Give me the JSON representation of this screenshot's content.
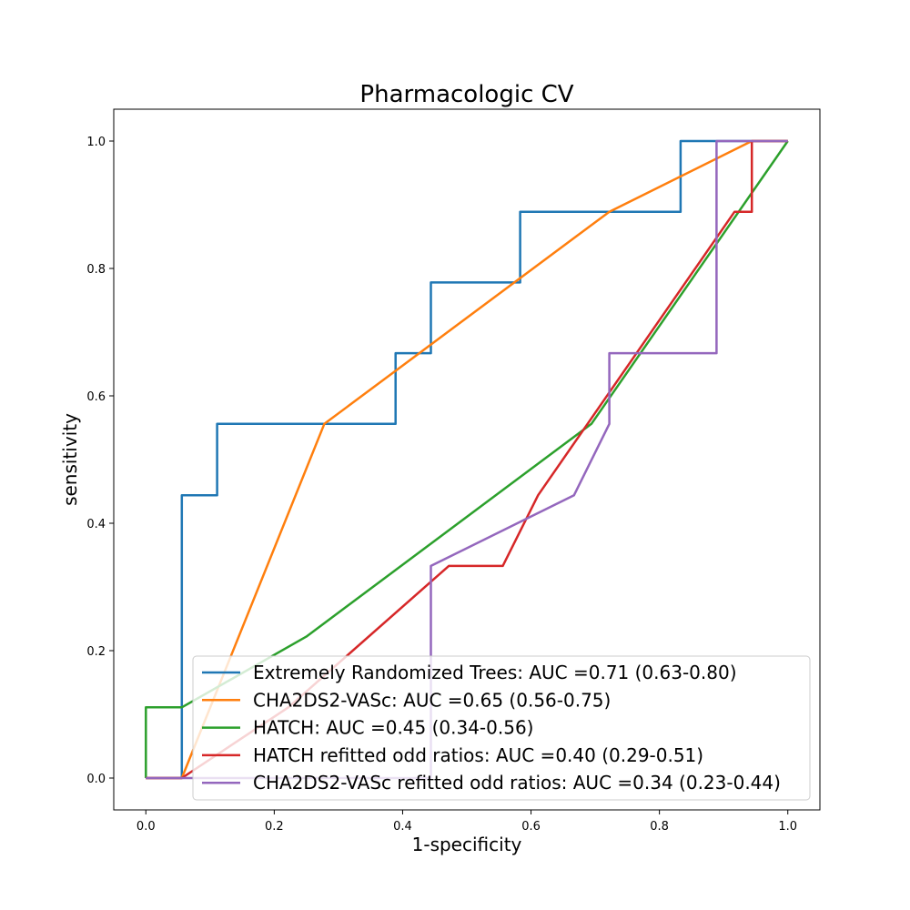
{
  "chart_data": {
    "type": "line",
    "title": "Pharmacologic CV",
    "xlabel": "1-specificity",
    "ylabel": "sensitivity",
    "xlim": [
      -0.05,
      1.05
    ],
    "ylim": [
      -0.05,
      1.05
    ],
    "xticks": [
      0.0,
      0.2,
      0.4,
      0.6,
      0.8,
      1.0
    ],
    "yticks": [
      0.0,
      0.2,
      0.4,
      0.6,
      0.8,
      1.0
    ],
    "xtick_labels": [
      "0.0",
      "0.2",
      "0.4",
      "0.6",
      "0.8",
      "1.0"
    ],
    "ytick_labels": [
      "0.0",
      "0.2",
      "0.4",
      "0.6",
      "0.8",
      "1.0"
    ],
    "grid": false,
    "legend_position": "lower-right",
    "series": [
      {
        "name": "Extremely Randomized Trees: AUC =0.71 (0.63-0.80)",
        "color": "#1f77b4",
        "x": [
          0.0,
          0.056,
          0.056,
          0.111,
          0.111,
          0.389,
          0.389,
          0.444,
          0.444,
          0.583,
          0.583,
          0.833,
          0.833,
          1.0
        ],
        "y": [
          0.0,
          0.0,
          0.444,
          0.444,
          0.556,
          0.556,
          0.667,
          0.667,
          0.778,
          0.778,
          0.889,
          0.889,
          1.0,
          1.0
        ]
      },
      {
        "name": "CHA2DS2-VASc: AUC =0.65 (0.56-0.75)",
        "color": "#ff7f0e",
        "x": [
          0.0,
          0.056,
          0.278,
          0.722,
          0.944,
          1.0
        ],
        "y": [
          0.0,
          0.0,
          0.556,
          0.889,
          1.0,
          1.0
        ]
      },
      {
        "name": "HATCH: AUC =0.45 (0.34-0.56)",
        "color": "#2ca02c",
        "x": [
          0.0,
          0.0,
          0.056,
          0.25,
          0.694,
          1.0
        ],
        "y": [
          0.0,
          0.111,
          0.111,
          0.222,
          0.556,
          1.0
        ]
      },
      {
        "name": "HATCH refitted odd ratios: AUC =0.40 (0.29-0.51)",
        "color": "#d62728",
        "x": [
          0.0,
          0.056,
          0.222,
          0.472,
          0.556,
          0.611,
          0.917,
          0.944,
          0.944,
          1.0
        ],
        "y": [
          0.0,
          0.0,
          0.111,
          0.333,
          0.333,
          0.444,
          0.889,
          0.889,
          1.0,
          1.0
        ]
      },
      {
        "name": "CHA2DS2-VASc refitted odd ratios: AUC =0.34 (0.23-0.44)",
        "color": "#9467bd",
        "x": [
          0.0,
          0.444,
          0.444,
          0.667,
          0.722,
          0.722,
          0.889,
          0.889,
          1.0
        ],
        "y": [
          0.0,
          0.0,
          0.333,
          0.444,
          0.556,
          0.667,
          0.667,
          1.0,
          1.0
        ]
      }
    ]
  }
}
